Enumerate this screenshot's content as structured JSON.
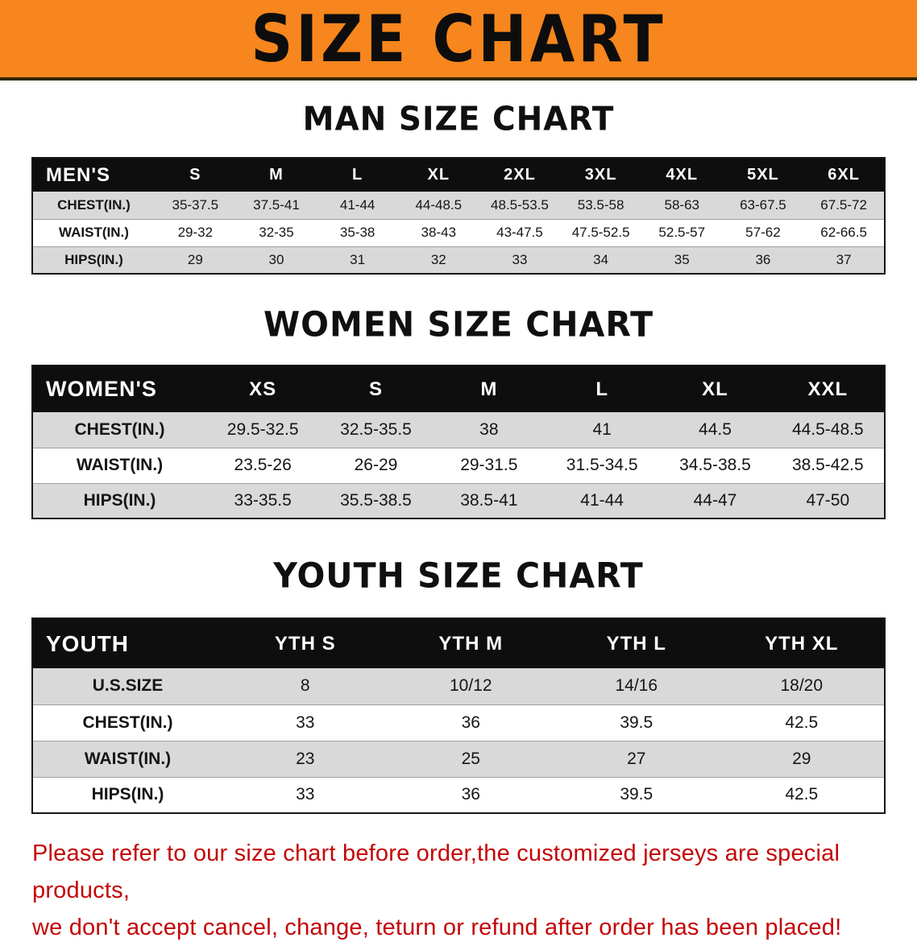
{
  "banner": {
    "title": "SIZE CHART",
    "bg_color": "#f6861d"
  },
  "sections": [
    {
      "heading": "MAN SIZE CHART",
      "table": {
        "label": "MEN'S",
        "columns": [
          "S",
          "M",
          "L",
          "XL",
          "2XL",
          "3XL",
          "4XL",
          "5XL",
          "6XL"
        ],
        "rows": [
          {
            "label": "CHEST(IN.)",
            "values": [
              "35-37.5",
              "37.5-41",
              "41-44",
              "44-48.5",
              "48.5-53.5",
              "53.5-58",
              "58-63",
              "63-67.5",
              "67.5-72"
            ]
          },
          {
            "label": "WAIST(IN.)",
            "values": [
              "29-32",
              "32-35",
              "35-38",
              "38-43",
              "43-47.5",
              "47.5-52.5",
              "52.5-57",
              "57-62",
              "62-66.5"
            ]
          },
          {
            "label": "HIPS(IN.)",
            "values": [
              "29",
              "30",
              "31",
              "32",
              "33",
              "34",
              "35",
              "36",
              "37"
            ]
          }
        ]
      }
    },
    {
      "heading": "WOMEN SIZE CHART",
      "table": {
        "label": "WOMEN'S",
        "columns": [
          "XS",
          "S",
          "M",
          "L",
          "XL",
          "XXL"
        ],
        "rows": [
          {
            "label": "CHEST(IN.)",
            "values": [
              "29.5-32.5",
              "32.5-35.5",
              "38",
              "41",
              "44.5",
              "44.5-48.5"
            ]
          },
          {
            "label": "WAIST(IN.)",
            "values": [
              "23.5-26",
              "26-29",
              "29-31.5",
              "31.5-34.5",
              "34.5-38.5",
              "38.5-42.5"
            ]
          },
          {
            "label": "HIPS(IN.)",
            "values": [
              "33-35.5",
              "35.5-38.5",
              "38.5-41",
              "41-44",
              "44-47",
              "47-50"
            ]
          }
        ]
      }
    },
    {
      "heading": "YOUTH SIZE CHART",
      "table": {
        "label": "YOUTH",
        "columns": [
          "YTH S",
          "YTH M",
          "YTH L",
          "YTH XL"
        ],
        "rows": [
          {
            "label": "U.S.SIZE",
            "values": [
              "8",
              "10/12",
              "14/16",
              "18/20"
            ]
          },
          {
            "label": "CHEST(IN.)",
            "values": [
              "33",
              "36",
              "39.5",
              "42.5"
            ]
          },
          {
            "label": "WAIST(IN.)",
            "values": [
              "23",
              "25",
              "27",
              "29"
            ]
          },
          {
            "label": "HIPS(IN.)",
            "values": [
              "33",
              "36",
              "39.5",
              "42.5"
            ]
          }
        ]
      }
    }
  ],
  "footer": {
    "line1": "Please refer to our size chart before order,the customized jerseys are special products,",
    "line2": "we don't accept cancel, change, teturn or refund after order has been placed!",
    "text_color": "#c40505"
  }
}
